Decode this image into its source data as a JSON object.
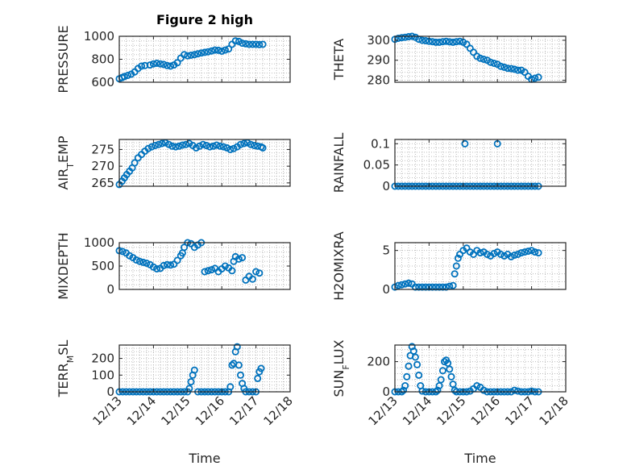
{
  "figure": {
    "title": "Figure 2 high",
    "marker_color": "#0072BD",
    "xlabel": "Time"
  },
  "chart_data": [
    {
      "type": "scatter",
      "ylabel": "PRESSURE",
      "xlim": [
        0,
        5
      ],
      "ylim": [
        600,
        1000
      ],
      "xticks": [
        "12/13",
        "12/14",
        "12/15",
        "12/16",
        "12/17",
        "12/18"
      ],
      "yticks": [
        600,
        800,
        1000
      ],
      "grid": true,
      "x": [
        0,
        0.08,
        0.15,
        0.25,
        0.35,
        0.45,
        0.55,
        0.65,
        0.75,
        0.9,
        1.0,
        1.1,
        1.2,
        1.3,
        1.4,
        1.5,
        1.6,
        1.7,
        1.8,
        1.9,
        2.0,
        2.1,
        2.2,
        2.3,
        2.4,
        2.5,
        2.6,
        2.7,
        2.8,
        2.9,
        3.0,
        3.1,
        3.2,
        3.3,
        3.4,
        3.5,
        3.6,
        3.7,
        3.8,
        3.9,
        4.0,
        4.1,
        4.2
      ],
      "y": [
        630,
        640,
        650,
        660,
        670,
        690,
        720,
        740,
        745,
        750,
        760,
        765,
        760,
        755,
        745,
        740,
        750,
        770,
        810,
        840,
        830,
        835,
        840,
        848,
        855,
        860,
        865,
        872,
        880,
        878,
        870,
        880,
        890,
        930,
        960,
        955,
        940,
        935,
        930,
        930,
        930,
        928,
        930
      ]
    },
    {
      "type": "scatter",
      "ylabel": "THETA",
      "xlim": [
        0,
        5
      ],
      "ylim": [
        279,
        302
      ],
      "xticks": [
        "12/13",
        "12/14",
        "12/15",
        "12/16",
        "12/17",
        "12/18"
      ],
      "yticks": [
        280,
        290,
        300
      ],
      "grid": true,
      "x": [
        0,
        0.1,
        0.2,
        0.3,
        0.4,
        0.5,
        0.6,
        0.7,
        0.8,
        0.9,
        1.0,
        1.1,
        1.2,
        1.3,
        1.4,
        1.5,
        1.6,
        1.7,
        1.8,
        1.9,
        2.0,
        2.1,
        2.2,
        2.3,
        2.4,
        2.5,
        2.6,
        2.7,
        2.8,
        2.9,
        3.0,
        3.1,
        3.2,
        3.3,
        3.4,
        3.5,
        3.6,
        3.7,
        3.8,
        3.9,
        4.0,
        4.1,
        4.2
      ],
      "y": [
        300.5,
        301,
        301.3,
        301.5,
        301.8,
        302,
        301.5,
        300.5,
        300,
        299.8,
        299.5,
        299.3,
        299,
        299,
        299.3,
        299.5,
        299.2,
        299,
        299.3,
        299.5,
        299,
        298,
        296,
        294,
        292,
        291,
        290.5,
        290,
        289,
        288.5,
        288,
        287,
        286.5,
        286,
        285.8,
        285.5,
        285,
        285,
        284,
        282,
        280.5,
        281,
        281.5
      ]
    },
    {
      "type": "scatter",
      "ylabel": "AIR_TEMP",
      "xlim": [
        0,
        5
      ],
      "ylim": [
        264,
        278
      ],
      "xticks": [
        "12/13",
        "12/14",
        "12/15",
        "12/16",
        "12/17",
        "12/18"
      ],
      "yticks": [
        265,
        270,
        275
      ],
      "grid": true,
      "x": [
        0,
        0.08,
        0.15,
        0.22,
        0.3,
        0.38,
        0.45,
        0.55,
        0.65,
        0.75,
        0.85,
        0.95,
        1.05,
        1.15,
        1.25,
        1.35,
        1.45,
        1.55,
        1.65,
        1.75,
        1.85,
        1.95,
        2.05,
        2.15,
        2.25,
        2.35,
        2.45,
        2.55,
        2.65,
        2.75,
        2.85,
        2.95,
        3.05,
        3.15,
        3.25,
        3.35,
        3.45,
        3.55,
        3.65,
        3.75,
        3.85,
        3.95,
        4.05,
        4.15,
        4.2
      ],
      "y": [
        264.5,
        265.5,
        266.5,
        267.5,
        268.5,
        269.5,
        271,
        272.5,
        273.5,
        274.5,
        275.3,
        275.8,
        276.2,
        276.5,
        276.8,
        277,
        276.5,
        276,
        275.8,
        276,
        276.3,
        276.5,
        276.8,
        276.2,
        275.5,
        276,
        276.5,
        276.2,
        275.8,
        276,
        276.3,
        276,
        275.8,
        275.5,
        275,
        275.3,
        275.8,
        276.5,
        276.8,
        277,
        276.5,
        276.2,
        276,
        275.8,
        275.5
      ]
    },
    {
      "type": "scatter",
      "ylabel": "RAINFALL",
      "xlim": [
        0,
        5
      ],
      "ylim": [
        0,
        0.11
      ],
      "xticks": [
        "12/13",
        "12/14",
        "12/15",
        "12/16",
        "12/17",
        "12/18"
      ],
      "yticks": [
        0,
        0.05,
        0.1
      ],
      "grid": true,
      "x": [
        0,
        0.1,
        0.2,
        0.3,
        0.4,
        0.5,
        0.6,
        0.7,
        0.8,
        0.9,
        1.0,
        1.1,
        1.2,
        1.3,
        1.4,
        1.5,
        1.6,
        1.7,
        1.8,
        1.9,
        2.0,
        2.1,
        2.2,
        2.3,
        2.4,
        2.5,
        2.6,
        2.7,
        2.8,
        2.9,
        3.0,
        3.1,
        3.2,
        3.3,
        3.4,
        3.5,
        3.6,
        3.7,
        3.8,
        3.9,
        4.0,
        4.1,
        4.2,
        2.05,
        3.0
      ],
      "y": [
        0,
        0,
        0,
        0,
        0,
        0,
        0,
        0,
        0,
        0,
        0,
        0,
        0,
        0,
        0,
        0,
        0,
        0,
        0,
        0,
        0,
        0,
        0,
        0,
        0,
        0,
        0,
        0,
        0,
        0,
        0,
        0,
        0,
        0,
        0,
        0,
        0,
        0,
        0,
        0,
        0,
        0,
        0,
        0.1,
        0.1
      ]
    },
    {
      "type": "scatter",
      "ylabel": "MIXDEPTH",
      "xlim": [
        0,
        5
      ],
      "ylim": [
        0,
        1000
      ],
      "xticks": [
        "12/13",
        "12/14",
        "12/15",
        "12/16",
        "12/17",
        "12/18"
      ],
      "yticks": [
        0,
        500,
        1000
      ],
      "grid": true,
      "x": [
        0,
        0.1,
        0.2,
        0.3,
        0.4,
        0.5,
        0.6,
        0.7,
        0.8,
        0.9,
        1.0,
        1.1,
        1.2,
        1.3,
        1.4,
        1.5,
        1.6,
        1.7,
        1.8,
        1.85,
        1.9,
        2.0,
        2.1,
        2.2,
        2.3,
        2.4,
        2.5,
        2.6,
        2.7,
        2.8,
        2.9,
        3.0,
        3.1,
        3.2,
        3.3,
        3.35,
        3.4,
        3.5,
        3.6,
        3.7,
        3.8,
        3.9,
        4.0,
        4.1
      ],
      "y": [
        830,
        810,
        780,
        720,
        680,
        630,
        600,
        580,
        560,
        530,
        480,
        440,
        450,
        510,
        530,
        520,
        540,
        620,
        720,
        780,
        900,
        1000,
        980,
        900,
        950,
        1000,
        380,
        400,
        420,
        450,
        380,
        440,
        500,
        460,
        400,
        600,
        700,
        650,
        680,
        200,
        280,
        220,
        380,
        350
      ]
    },
    {
      "type": "scatter",
      "ylabel": "H2OMIXRA",
      "xlim": [
        0,
        5
      ],
      "ylim": [
        0,
        6
      ],
      "xticks": [
        "12/13",
        "12/14",
        "12/15",
        "12/16",
        "12/17",
        "12/18"
      ],
      "yticks": [
        0,
        5
      ],
      "grid": true,
      "x": [
        0,
        0.1,
        0.2,
        0.3,
        0.4,
        0.5,
        0.6,
        0.7,
        0.8,
        0.9,
        1.0,
        1.1,
        1.2,
        1.3,
        1.4,
        1.5,
        1.6,
        1.7,
        1.75,
        1.8,
        1.85,
        1.9,
        2.0,
        2.1,
        2.2,
        2.3,
        2.4,
        2.5,
        2.6,
        2.7,
        2.8,
        2.9,
        3.0,
        3.1,
        3.2,
        3.3,
        3.4,
        3.5,
        3.6,
        3.7,
        3.8,
        3.9,
        4.0,
        4.1,
        4.2
      ],
      "y": [
        0.3,
        0.5,
        0.6,
        0.7,
        0.8,
        0.7,
        0.3,
        0.3,
        0.3,
        0.3,
        0.3,
        0.3,
        0.3,
        0.3,
        0.3,
        0.3,
        0.4,
        0.5,
        2.0,
        3.0,
        4.0,
        4.5,
        5.0,
        5.3,
        4.8,
        4.5,
        5.0,
        4.7,
        4.8,
        4.5,
        4.3,
        4.6,
        4.8,
        4.5,
        4.3,
        4.5,
        4.2,
        4.4,
        4.5,
        4.7,
        4.8,
        4.9,
        5.0,
        4.8,
        4.7
      ]
    },
    {
      "type": "scatter",
      "ylabel": "TERR_MSL",
      "xlim": [
        0,
        5
      ],
      "ylim": [
        0,
        280
      ],
      "xticks": [
        "12/13",
        "12/14",
        "12/15",
        "12/16",
        "12/17",
        "12/18"
      ],
      "yticks": [
        0,
        100,
        200
      ],
      "grid": true,
      "x": [
        0,
        0.1,
        0.2,
        0.3,
        0.4,
        0.5,
        0.6,
        0.7,
        0.8,
        0.9,
        1.0,
        1.1,
        1.2,
        1.3,
        1.4,
        1.5,
        1.6,
        1.7,
        1.8,
        1.9,
        2.0,
        2.05,
        2.1,
        2.15,
        2.2,
        2.3,
        2.4,
        2.5,
        2.6,
        2.7,
        2.8,
        2.9,
        3.0,
        3.1,
        3.2,
        3.25,
        3.3,
        3.35,
        3.4,
        3.45,
        3.5,
        3.55,
        3.6,
        3.65,
        3.7,
        3.8,
        3.9,
        4.0,
        4.05,
        4.1,
        4.15
      ],
      "y": [
        0,
        0,
        0,
        0,
        0,
        0,
        0,
        0,
        0,
        0,
        0,
        0,
        0,
        0,
        0,
        0,
        0,
        0,
        0,
        0,
        0,
        20,
        60,
        100,
        130,
        0,
        0,
        0,
        0,
        0,
        0,
        0,
        0,
        0,
        0,
        30,
        160,
        170,
        240,
        270,
        160,
        100,
        50,
        20,
        0,
        0,
        0,
        0,
        80,
        120,
        140
      ]
    },
    {
      "type": "scatter",
      "ylabel": "SUN_FLUX",
      "xlim": [
        0,
        5
      ],
      "ylim": [
        0,
        310
      ],
      "xticks": [
        "12/13",
        "12/14",
        "12/15",
        "12/16",
        "12/17",
        "12/18"
      ],
      "yticks": [
        0,
        200
      ],
      "grid": true,
      "x": [
        0,
        0.1,
        0.2,
        0.25,
        0.3,
        0.35,
        0.4,
        0.45,
        0.5,
        0.55,
        0.6,
        0.65,
        0.7,
        0.75,
        0.8,
        0.9,
        1.0,
        1.1,
        1.2,
        1.25,
        1.3,
        1.35,
        1.4,
        1.45,
        1.5,
        1.55,
        1.6,
        1.65,
        1.7,
        1.75,
        1.8,
        1.9,
        2.0,
        2.1,
        2.2,
        2.3,
        2.4,
        2.5,
        2.6,
        2.7,
        2.8,
        2.9,
        3.0,
        3.1,
        3.2,
        3.3,
        3.4,
        3.5,
        3.6,
        3.7,
        3.8,
        3.9,
        4.0,
        4.1,
        4.2
      ],
      "y": [
        0,
        0,
        0,
        10,
        40,
        100,
        170,
        240,
        300,
        270,
        230,
        180,
        110,
        40,
        5,
        0,
        0,
        0,
        0,
        10,
        40,
        80,
        140,
        200,
        210,
        190,
        150,
        100,
        50,
        10,
        0,
        0,
        0,
        0,
        5,
        20,
        40,
        30,
        10,
        0,
        0,
        0,
        0,
        0,
        0,
        0,
        0,
        10,
        5,
        0,
        0,
        0,
        5,
        0,
        0
      ]
    }
  ]
}
